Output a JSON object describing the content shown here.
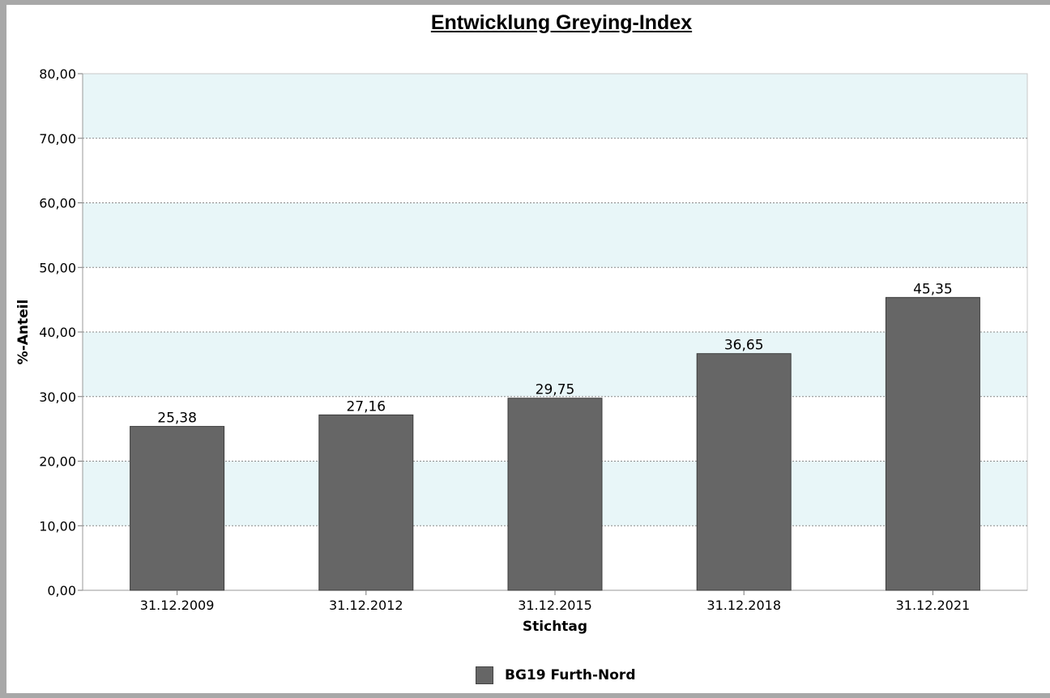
{
  "chart_data": {
    "type": "bar",
    "title": "Entwicklung Greying-Index",
    "xlabel": "Stichtag",
    "ylabel": "%-Anteil",
    "categories": [
      "31.12.2009",
      "31.12.2012",
      "31.12.2015",
      "31.12.2018",
      "31.12.2021"
    ],
    "series": [
      {
        "name": "BG19 Furth-Nord",
        "values": [
          25.38,
          27.16,
          29.75,
          36.65,
          45.35
        ],
        "value_labels": [
          "25,38",
          "27,16",
          "29,75",
          "36,65",
          "45,35"
        ],
        "color": "#666666"
      }
    ],
    "ylim": [
      0,
      80
    ],
    "yticks": [
      0,
      10,
      20,
      30,
      40,
      50,
      60,
      70,
      80
    ],
    "ytick_labels": [
      "0,00",
      "10,00",
      "20,00",
      "30,00",
      "40,00",
      "50,00",
      "60,00",
      "70,00",
      "80,00"
    ],
    "grid": true,
    "band_color": "#e8f6f8",
    "legend_position": "bottom-center"
  }
}
